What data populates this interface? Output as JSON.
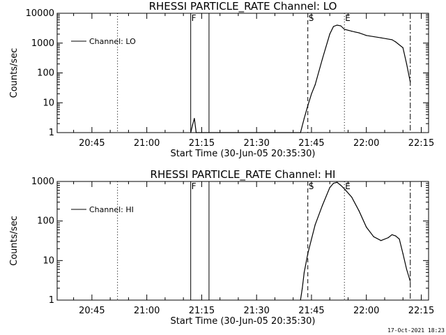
{
  "chart_data": [
    {
      "type": "line",
      "title": "RHESSI PARTICLE_RATE Channel: LO",
      "xlabel": "Start Time (30-Jun-05 20:35:30)",
      "ylabel": "Counts/sec",
      "yscale": "log",
      "ylim": [
        1,
        10000
      ],
      "xlim": [
        "20:35:30",
        "22:17:00"
      ],
      "grid": false,
      "legend_position": "top-left",
      "x_tick_labels": [
        "20:45",
        "21:00",
        "21:15",
        "21:30",
        "21:45",
        "22:00",
        "22:15"
      ],
      "y_tick_labels": [
        "1",
        "10",
        "100",
        "1000",
        "10000"
      ],
      "series": [
        {
          "name": "Channel: LO",
          "x": [
            "21:12",
            "21:12:30",
            "21:13",
            "21:13:30",
            "21:42",
            "21:43",
            "21:44",
            "21:45",
            "21:46",
            "21:48",
            "21:50",
            "21:51",
            "21:52",
            "21:53",
            "21:54",
            "21:56",
            "21:58",
            "22:00",
            "22:04",
            "22:07",
            "22:08",
            "22:10",
            "22:11",
            "22:12"
          ],
          "y": [
            1,
            1.8,
            3,
            1,
            1,
            3,
            8,
            20,
            40,
            300,
            2000,
            3600,
            4000,
            3800,
            2900,
            2500,
            2200,
            1800,
            1500,
            1300,
            1100,
            700,
            200,
            50
          ]
        }
      ],
      "markers": [
        {
          "time": "20:52",
          "label": "",
          "style": "dotted"
        },
        {
          "time": "21:12",
          "label": "F",
          "style": "solid"
        },
        {
          "time": "21:17",
          "label": "",
          "style": "solid"
        },
        {
          "time": "21:44",
          "label": "S",
          "style": "dashed"
        },
        {
          "time": "21:54",
          "label": "E",
          "style": "dotted"
        },
        {
          "time": "22:12",
          "label": "",
          "style": "dashdot"
        }
      ]
    },
    {
      "type": "line",
      "title": "RHESSI PARTICLE_RATE Channel: HI",
      "xlabel": "Start Time (30-Jun-05 20:35:30)",
      "ylabel": "Counts/sec",
      "yscale": "log",
      "ylim": [
        1,
        1000
      ],
      "xlim": [
        "20:35:30",
        "22:17:00"
      ],
      "grid": false,
      "legend_position": "top-left",
      "x_tick_labels": [
        "20:45",
        "21:00",
        "21:15",
        "21:30",
        "21:45",
        "22:00",
        "22:15"
      ],
      "y_tick_labels": [
        "1",
        "10",
        "100",
        "1000"
      ],
      "series": [
        {
          "name": "Channel: HI",
          "x": [
            "21:42",
            "21:42:30",
            "21:43",
            "21:44",
            "21:45",
            "21:46",
            "21:48",
            "21:50",
            "21:51",
            "21:52",
            "21:53",
            "21:54",
            "21:56",
            "21:58",
            "22:00",
            "22:02",
            "22:04",
            "22:06",
            "22:07",
            "22:08",
            "22:09",
            "22:10",
            "22:11",
            "22:12"
          ],
          "y": [
            1,
            2,
            5,
            15,
            35,
            80,
            250,
            700,
            900,
            950,
            800,
            650,
            400,
            180,
            70,
            40,
            32,
            38,
            45,
            42,
            35,
            15,
            6,
            3
          ]
        }
      ],
      "markers": [
        {
          "time": "20:52",
          "label": "",
          "style": "dotted"
        },
        {
          "time": "21:12",
          "label": "F",
          "style": "solid"
        },
        {
          "time": "21:17",
          "label": "",
          "style": "solid"
        },
        {
          "time": "21:44",
          "label": "S",
          "style": "dashed"
        },
        {
          "time": "21:54",
          "label": "E",
          "style": "dotted"
        },
        {
          "time": "22:12",
          "label": "",
          "style": "dashdot"
        }
      ]
    }
  ],
  "footer_text": "17-Oct-2021 18:23"
}
